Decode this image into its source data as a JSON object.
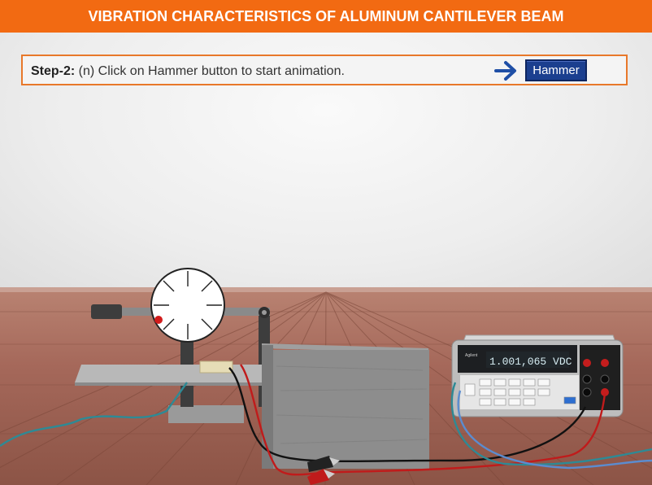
{
  "header": {
    "title": "VIBRATION CHARACTERISTICS OF ALUMINUM CANTILEVER BEAM"
  },
  "step": {
    "label": "Step-2:",
    "text": " (n) Click on Hammer button to start animation.",
    "button_label": "Hammer"
  },
  "multimeter": {
    "display": "1.001,065 VDC",
    "brand": "Agilent"
  },
  "colors": {
    "header_bg": "#f26a12",
    "button_bg": "#1b3f8f",
    "arrow": "#1f4fa6",
    "floor": "#9a5f4f"
  }
}
